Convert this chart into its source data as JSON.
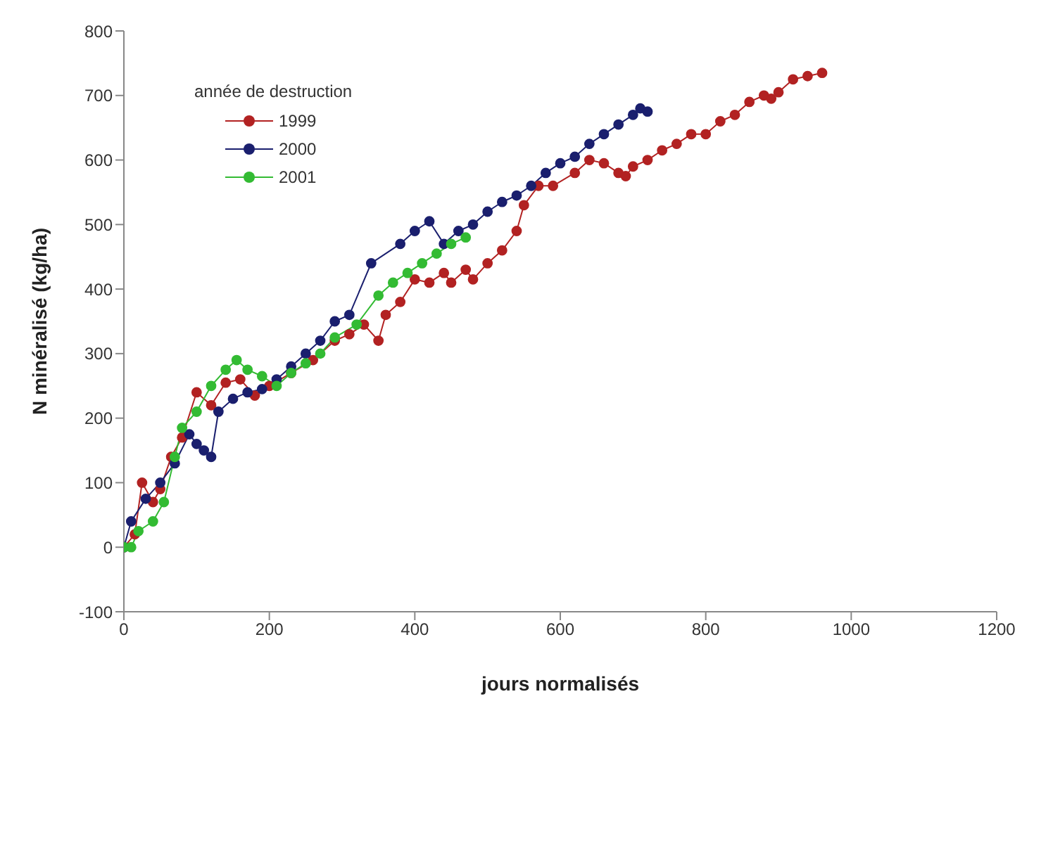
{
  "chart_data": {
    "type": "line",
    "xlabel": "jours normalisés",
    "ylabel": "N minéralisé (kg/ha)",
    "legend_title": "année de destruction",
    "legend": "top left",
    "marker": "circle",
    "line_style": "solid",
    "xlim": [
      0,
      1200
    ],
    "xticks": [
      0,
      200,
      400,
      600,
      800,
      1000,
      1200
    ],
    "ylim": [
      -100,
      800
    ],
    "yticks": [
      -100,
      0,
      100,
      200,
      300,
      400,
      500,
      600,
      700,
      800
    ],
    "series": [
      {
        "name": "1999",
        "color": "#b22222",
        "x": [
          0,
          15,
          25,
          40,
          50,
          65,
          80,
          100,
          120,
          140,
          160,
          180,
          200,
          230,
          260,
          290,
          310,
          330,
          350,
          360,
          380,
          400,
          420,
          440,
          450,
          470,
          480,
          500,
          520,
          540,
          550,
          570,
          590,
          620,
          640,
          660,
          680,
          690,
          700,
          720,
          740,
          760,
          780,
          800,
          820,
          840,
          860,
          880,
          890,
          900,
          920,
          940,
          960
        ],
        "values": [
          0,
          20,
          100,
          70,
          90,
          140,
          170,
          240,
          220,
          255,
          260,
          235,
          250,
          270,
          290,
          320,
          330,
          345,
          320,
          360,
          380,
          415,
          410,
          425,
          410,
          430,
          415,
          440,
          460,
          490,
          530,
          560,
          560,
          580,
          600,
          595,
          580,
          575,
          590,
          600,
          615,
          625,
          640,
          640,
          660,
          670,
          690,
          700,
          695,
          705,
          725,
          730,
          735
        ]
      },
      {
        "name": "2000",
        "color": "#1a1f6e",
        "x": [
          0,
          10,
          30,
          50,
          70,
          90,
          100,
          110,
          120,
          130,
          150,
          170,
          190,
          210,
          230,
          250,
          270,
          290,
          310,
          340,
          380,
          400,
          420,
          440,
          460,
          480,
          500,
          520,
          540,
          560,
          580,
          600,
          620,
          640,
          660,
          680,
          700,
          710,
          720
        ],
        "values": [
          0,
          40,
          75,
          100,
          130,
          175,
          160,
          150,
          140,
          210,
          230,
          240,
          245,
          260,
          280,
          300,
          320,
          350,
          360,
          440,
          470,
          490,
          505,
          470,
          490,
          500,
          520,
          535,
          545,
          560,
          580,
          595,
          605,
          625,
          640,
          655,
          670,
          680,
          675
        ]
      },
      {
        "name": "2001",
        "color": "#33bb33",
        "x": [
          0,
          10,
          20,
          40,
          55,
          70,
          80,
          100,
          120,
          140,
          155,
          170,
          190,
          210,
          230,
          250,
          270,
          290,
          320,
          350,
          370,
          390,
          410,
          430,
          450,
          470
        ],
        "values": [
          0,
          0,
          25,
          40,
          70,
          140,
          185,
          210,
          250,
          275,
          290,
          275,
          265,
          250,
          270,
          285,
          300,
          325,
          345,
          390,
          410,
          425,
          440,
          455,
          470,
          480
        ]
      }
    ]
  }
}
